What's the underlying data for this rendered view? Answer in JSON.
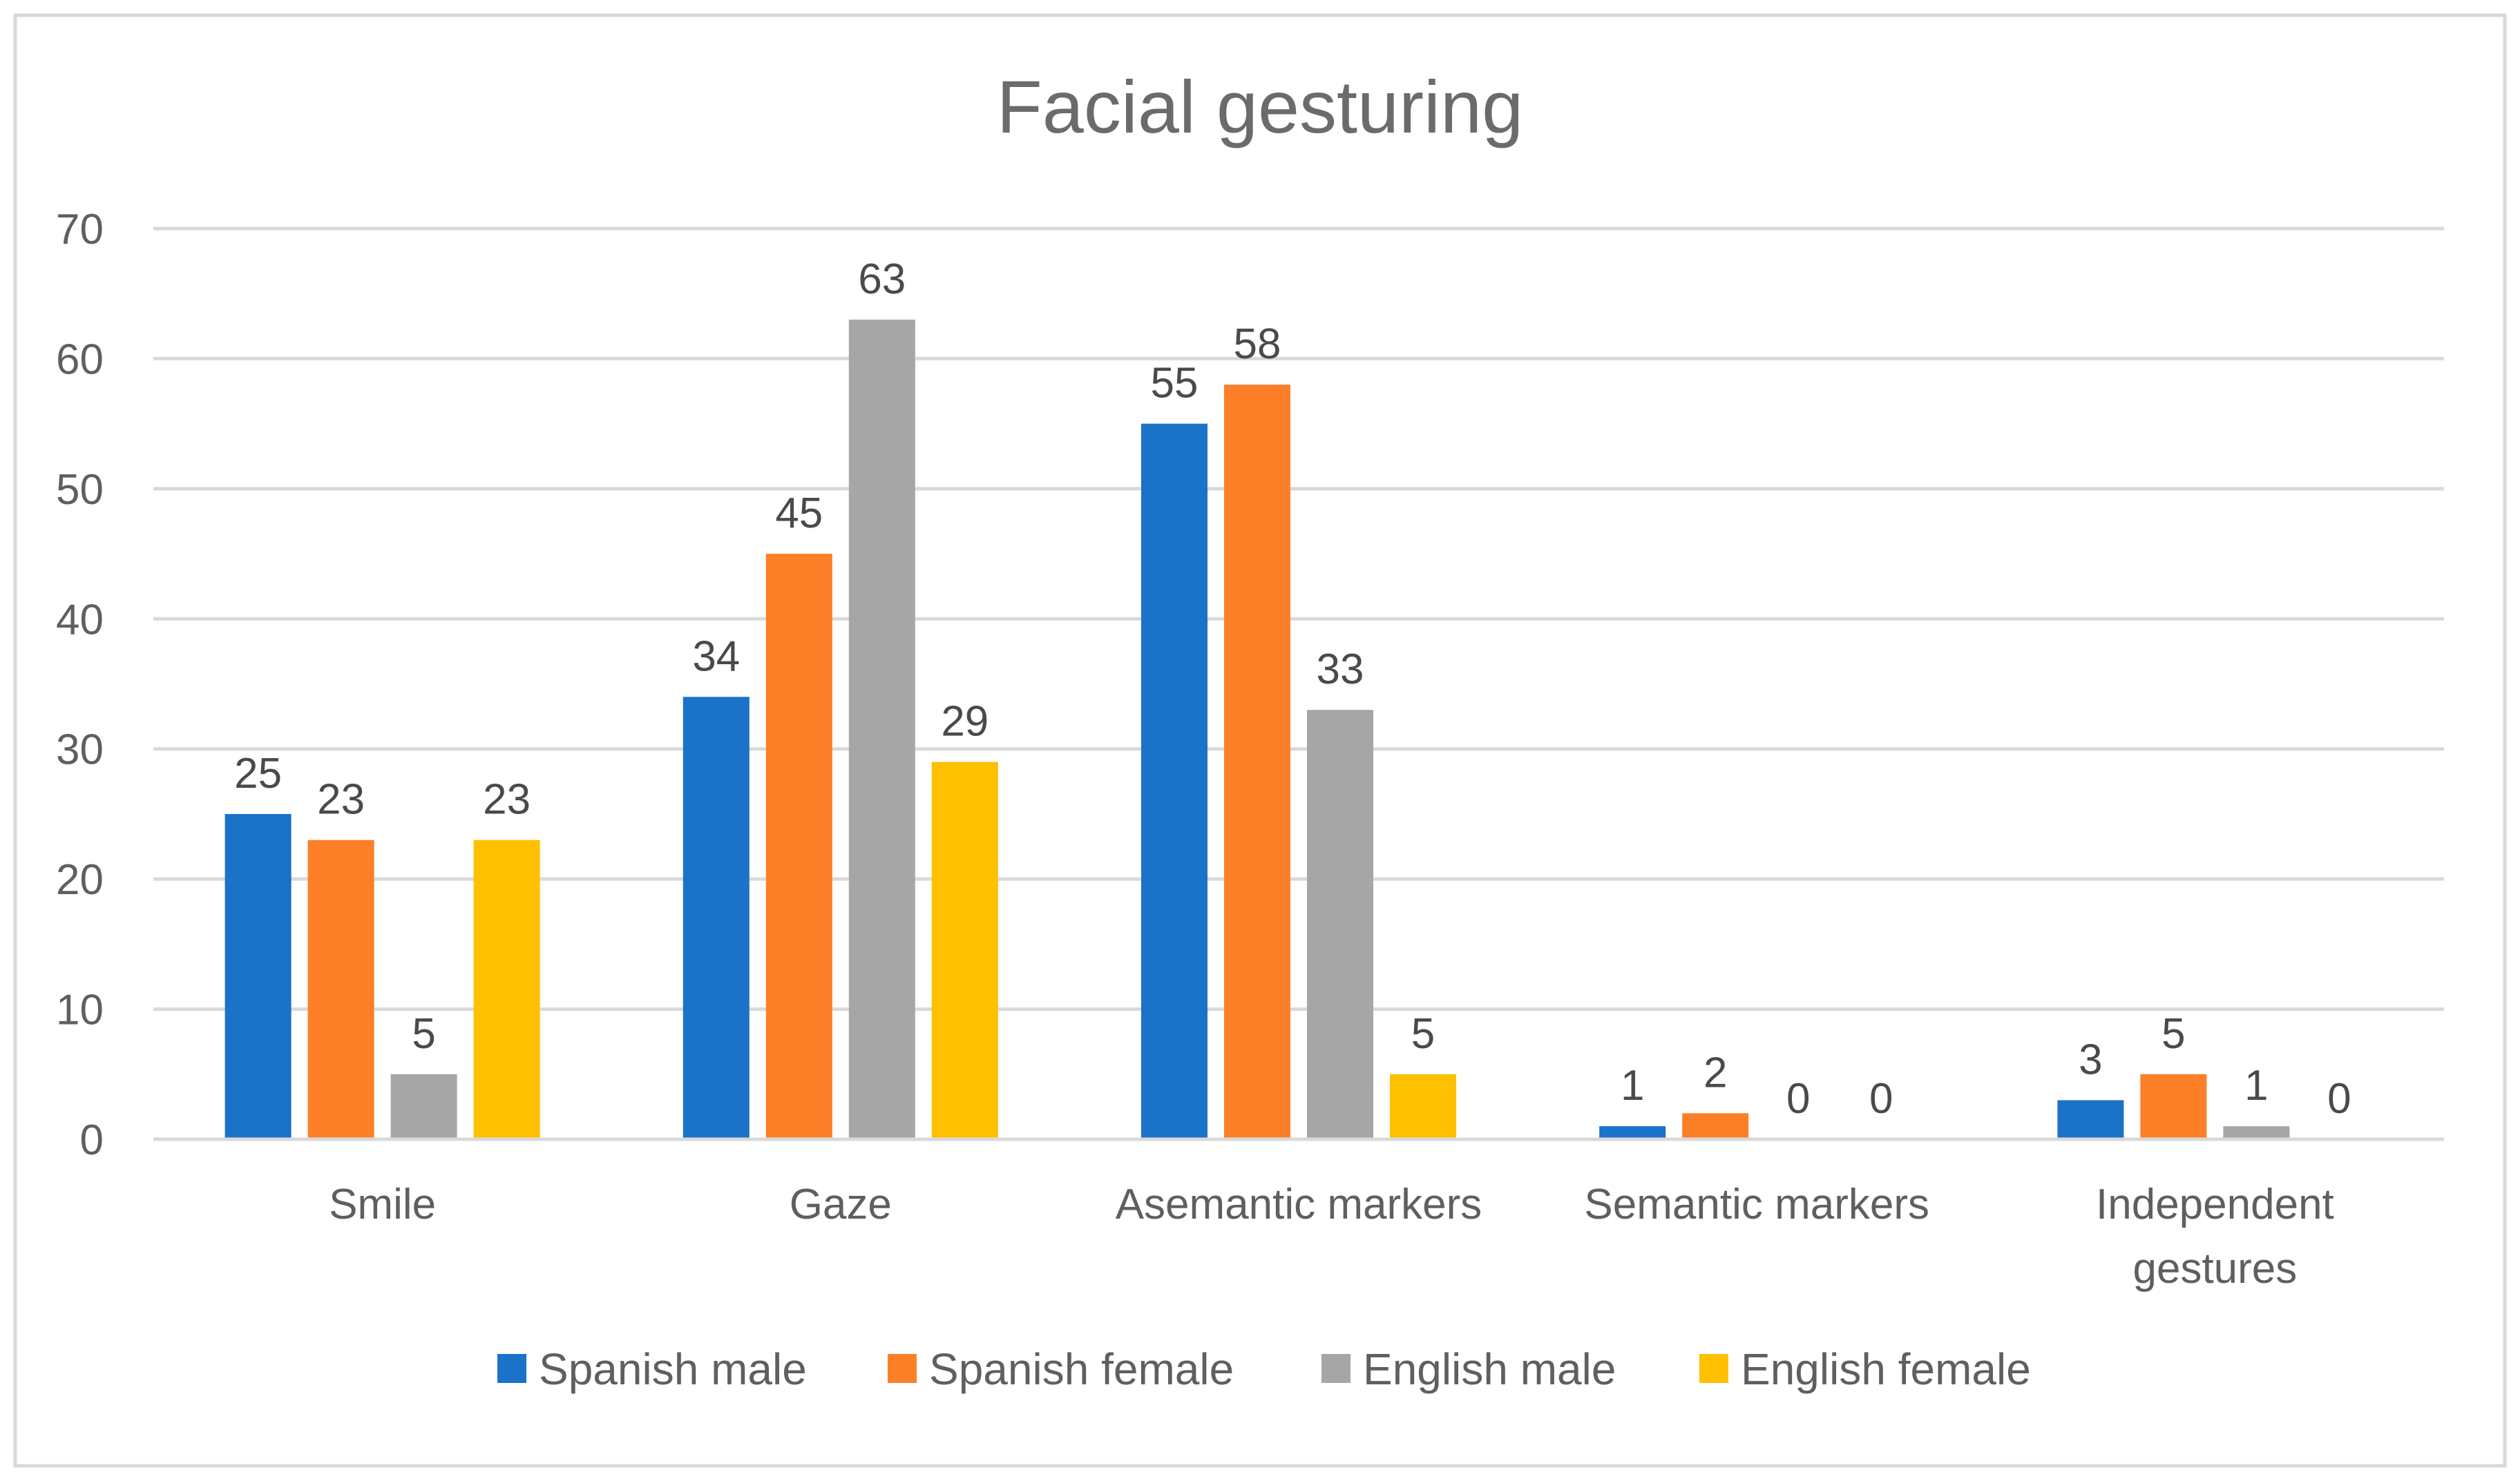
{
  "chart_data": {
    "type": "bar",
    "title": "Facial gesturing",
    "xlabel": "",
    "ylabel": "",
    "ylim": [
      0,
      70
    ],
    "yticks": [
      0,
      10,
      20,
      30,
      40,
      50,
      60,
      70
    ],
    "grid": true,
    "legend_position": "bottom",
    "categories": [
      [
        "Smile"
      ],
      [
        "Gaze"
      ],
      [
        "Asemantic markers"
      ],
      [
        "Semantic markers"
      ],
      [
        "Independent",
        "gestures"
      ]
    ],
    "series": [
      {
        "name": "Spanish male",
        "color": "#1a72c9",
        "values": [
          25,
          34,
          55,
          1,
          3
        ]
      },
      {
        "name": "Spanish female",
        "color": "#fd7f28",
        "values": [
          23,
          45,
          58,
          2,
          5
        ]
      },
      {
        "name": "English male",
        "color": "#a6a6a6",
        "values": [
          5,
          63,
          33,
          0,
          1
        ]
      },
      {
        "name": "English female",
        "color": "#ffc000",
        "values": [
          23,
          29,
          5,
          0,
          0
        ]
      }
    ]
  }
}
